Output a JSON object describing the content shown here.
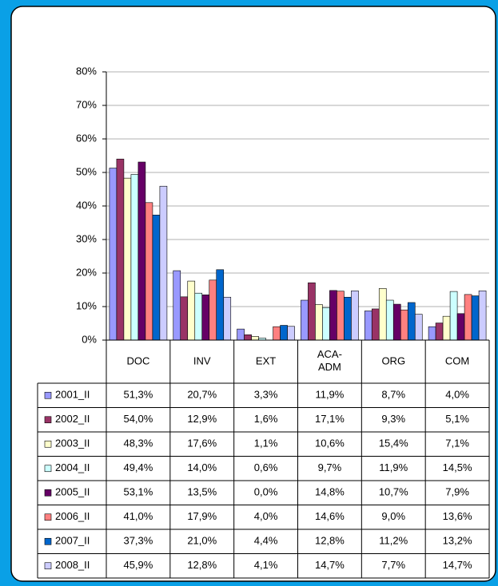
{
  "chart_data": {
    "type": "bar",
    "categories": [
      "DOC",
      "INV",
      "EXT",
      "ACA-ADM",
      "ORG",
      "COM"
    ],
    "series": [
      {
        "name": "2001_II",
        "color": "#9999ff",
        "values": [
          51.3,
          20.7,
          3.3,
          11.9,
          8.7,
          4.0
        ],
        "value_labels": [
          "51,3%",
          "20,7%",
          "3,3%",
          "11,9%",
          "8,7%",
          "4,0%"
        ]
      },
      {
        "name": "2002_II",
        "color": "#993366",
        "values": [
          54.0,
          12.9,
          1.6,
          17.1,
          9.3,
          5.1
        ],
        "value_labels": [
          "54,0%",
          "12,9%",
          "1,6%",
          "17,1%",
          "9,3%",
          "5,1%"
        ]
      },
      {
        "name": "2003_II",
        "color": "#ffffcc",
        "values": [
          48.3,
          17.6,
          1.1,
          10.6,
          15.4,
          7.1
        ],
        "value_labels": [
          "48,3%",
          "17,6%",
          "1,1%",
          "10,6%",
          "15,4%",
          "7,1%"
        ]
      },
      {
        "name": "2004_II",
        "color": "#ccffff",
        "values": [
          49.4,
          14.0,
          0.6,
          9.7,
          11.9,
          14.5
        ],
        "value_labels": [
          "49,4%",
          "14,0%",
          "0,6%",
          "9,7%",
          "11,9%",
          "14,5%"
        ]
      },
      {
        "name": "2005_II",
        "color": "#660066",
        "values": [
          53.1,
          13.5,
          0.0,
          14.8,
          10.7,
          7.9
        ],
        "value_labels": [
          "53,1%",
          "13,5%",
          "0,0%",
          "14,8%",
          "10,7%",
          "7,9%"
        ]
      },
      {
        "name": "2006_II",
        "color": "#ff8080",
        "values": [
          41.0,
          17.9,
          4.0,
          14.6,
          9.0,
          13.6
        ],
        "value_labels": [
          "41,0%",
          "17,9%",
          "4,0%",
          "14,6%",
          "9,0%",
          "13,6%"
        ]
      },
      {
        "name": "2007_II",
        "color": "#0066cc",
        "values": [
          37.3,
          21.0,
          4.4,
          12.8,
          11.2,
          13.2
        ],
        "value_labels": [
          "37,3%",
          "21,0%",
          "4,4%",
          "12,8%",
          "11,2%",
          "13,2%"
        ]
      },
      {
        "name": "2008_II",
        "color": "#ccccff",
        "values": [
          45.9,
          12.8,
          4.1,
          14.7,
          7.7,
          14.7
        ],
        "value_labels": [
          "45,9%",
          "12,8%",
          "4,1%",
          "14,7%",
          "7,7%",
          "14,7%"
        ]
      }
    ],
    "ylim": [
      0,
      80
    ],
    "yticks": [
      {
        "value": 0,
        "label": "0%"
      },
      {
        "value": 10,
        "label": "10%"
      },
      {
        "value": 20,
        "label": "20%"
      },
      {
        "value": 30,
        "label": "30%"
      },
      {
        "value": 40,
        "label": "40%"
      },
      {
        "value": 50,
        "label": "50%"
      },
      {
        "value": 60,
        "label": "60%"
      },
      {
        "value": 70,
        "label": "70%"
      },
      {
        "value": 80,
        "label": "80%"
      }
    ],
    "grid": true
  }
}
